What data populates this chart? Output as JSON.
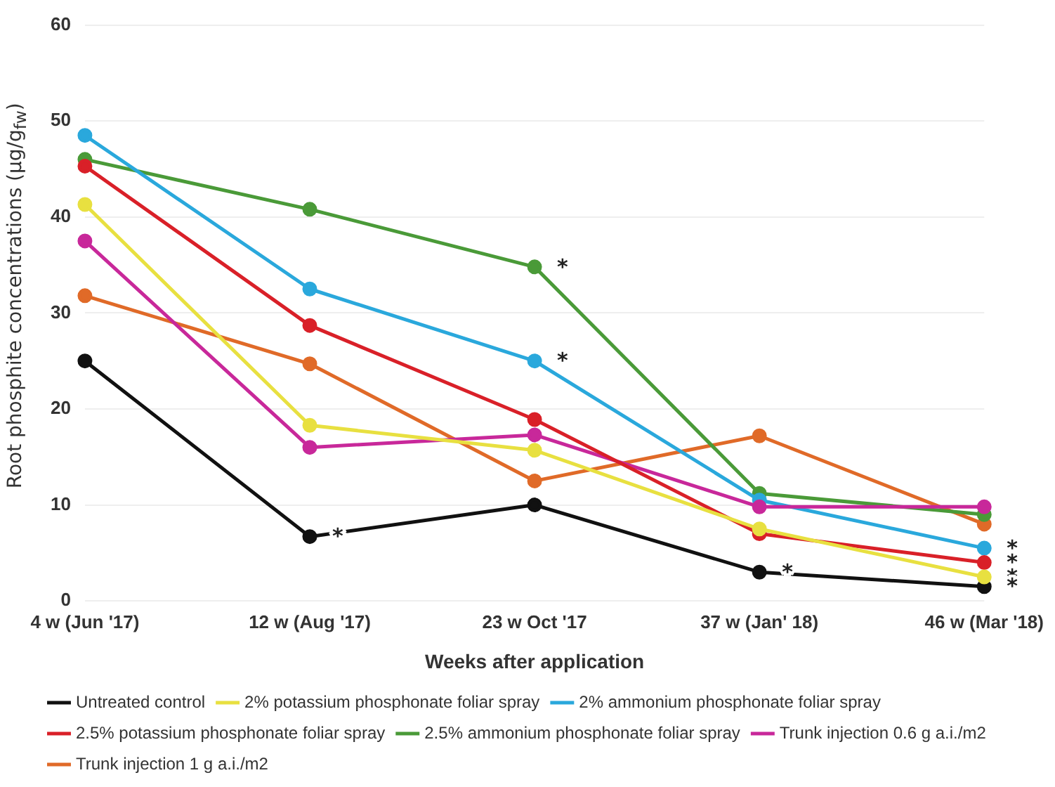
{
  "chart_data": {
    "type": "line",
    "xlabel": "Weeks after application",
    "ylabel": "Root phosphite concentrations (µg/g$_{fw}$)",
    "categories": [
      "4 w (Jun '17)",
      "12 w (Aug '17)",
      "23 w Oct '17",
      "37 w (Jan' 18)",
      "46 w (Mar '18)"
    ],
    "series": [
      {
        "name": "Untreated control",
        "color": "#111111",
        "values": [
          25,
          6.7,
          10,
          3,
          1.5
        ]
      },
      {
        "name": "2% potassium phosphonate foliar spray",
        "color": "#e8e040",
        "values": [
          41.3,
          18.3,
          15.7,
          7.5,
          2.5
        ]
      },
      {
        "name": "2% ammonium phosphonate foliar spray",
        "color": "#2aa8dc",
        "values": [
          48.5,
          32.5,
          25,
          10.5,
          5.5
        ]
      },
      {
        "name": "2.5% potassium phosphonate foliar spray",
        "color": "#d92028",
        "values": [
          45.3,
          28.7,
          18.9,
          7,
          4
        ]
      },
      {
        "name": "2.5% ammonium phosphonate foliar spray",
        "color": "#4a9a38",
        "values": [
          46,
          40.8,
          34.8,
          11.2,
          9
        ]
      },
      {
        "name": "Trunk injection 0.6 g a.i./m2",
        "color": "#c8289a",
        "values": [
          37.5,
          16,
          17.3,
          9.8,
          9.8
        ]
      },
      {
        "name": "Trunk injection 1 g a.i./m2",
        "color": "#e06a28",
        "values": [
          31.8,
          24.7,
          12.5,
          17.2,
          8
        ]
      }
    ],
    "ylim": [
      0,
      60
    ],
    "yticks": [
      0,
      10,
      20,
      30,
      40,
      50,
      60
    ],
    "grid": "y",
    "legend": "bottom",
    "marker": "circle",
    "line_style": "solid",
    "annotations": [
      {
        "text": "*",
        "x": "12 w (Aug '17)",
        "y": 6.7
      },
      {
        "text": "*",
        "x": "23 w Oct '17",
        "y": 34.8
      },
      {
        "text": "*",
        "x": "23 w Oct '17",
        "y": 25
      },
      {
        "text": "*",
        "x": "37 w (Jan' 18)",
        "y": 3
      },
      {
        "text": "*",
        "x": "46 w (Mar '18)",
        "y": 5.5
      },
      {
        "text": "*",
        "x": "46 w (Mar '18)",
        "y": 4
      },
      {
        "text": "*",
        "x": "46 w (Mar '18)",
        "y": 2.5
      },
      {
        "text": "*",
        "x": "46 w (Mar '18)",
        "y": 1.5
      }
    ]
  }
}
